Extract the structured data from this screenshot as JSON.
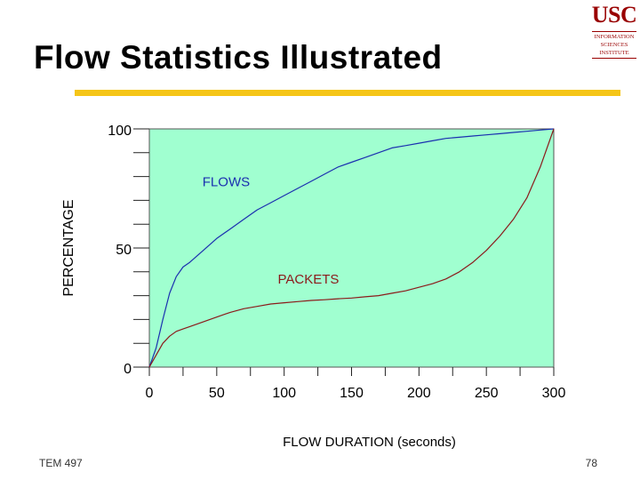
{
  "slide": {
    "title": "Flow Statistics Illustrated",
    "footer_left": "TEM 497",
    "page_number": "78"
  },
  "logo": {
    "name": "USC",
    "lines": [
      "INFORMATION",
      "SCIENCES",
      "INSTITUTE"
    ]
  },
  "colors": {
    "title_rule": "#f5c518",
    "plot_background": "#a0ffd0",
    "flows_line": "#1a2fb0",
    "packets_line": "#8b1a1a",
    "flows_label": "#1a2fb0",
    "packets_label": "#8b1a1a",
    "logo": "#990000"
  },
  "chart_data": {
    "type": "line",
    "xlabel": "FLOW DURATION (seconds)",
    "ylabel": "PERCENTAGE",
    "xlim": [
      0,
      300
    ],
    "ylim": [
      0,
      100
    ],
    "x_ticks": [
      "0",
      "50",
      "100",
      "150",
      "200",
      "250",
      "300"
    ],
    "y_ticks": [
      "0",
      "50",
      "100"
    ],
    "grid": false,
    "series": [
      {
        "name": "FLOWS",
        "x": [
          0,
          5,
          10,
          15,
          20,
          25,
          30,
          40,
          50,
          60,
          70,
          80,
          90,
          100,
          110,
          120,
          130,
          140,
          150,
          160,
          170,
          180,
          190,
          200,
          210,
          220,
          230,
          240,
          250,
          260,
          270,
          280,
          290,
          300
        ],
        "y": [
          0,
          8,
          20,
          31,
          38,
          42,
          44,
          49,
          54,
          58,
          62,
          66,
          69,
          72,
          75,
          78,
          81,
          84,
          86,
          88,
          90,
          92,
          93,
          94,
          95,
          96,
          96.5,
          97,
          97.5,
          98,
          98.5,
          99,
          99.5,
          100
        ]
      },
      {
        "name": "PACKETS",
        "x": [
          0,
          5,
          10,
          15,
          20,
          25,
          30,
          40,
          50,
          60,
          70,
          80,
          90,
          100,
          110,
          120,
          130,
          140,
          150,
          160,
          170,
          180,
          190,
          200,
          210,
          220,
          230,
          240,
          250,
          260,
          270,
          280,
          290,
          300
        ],
        "y": [
          0,
          5,
          10,
          13,
          15,
          16,
          17,
          19,
          21,
          23,
          24.5,
          25.5,
          26.5,
          27,
          27.5,
          28,
          28.3,
          28.7,
          29,
          29.5,
          30,
          31,
          32,
          33.5,
          35,
          37,
          40,
          44,
          49,
          55,
          62,
          71,
          84,
          100
        ]
      }
    ],
    "annotations": [
      {
        "text": "FLOWS",
        "x": 57,
        "y": 76
      },
      {
        "text": "PACKETS",
        "x": 118,
        "y": 35
      }
    ]
  }
}
